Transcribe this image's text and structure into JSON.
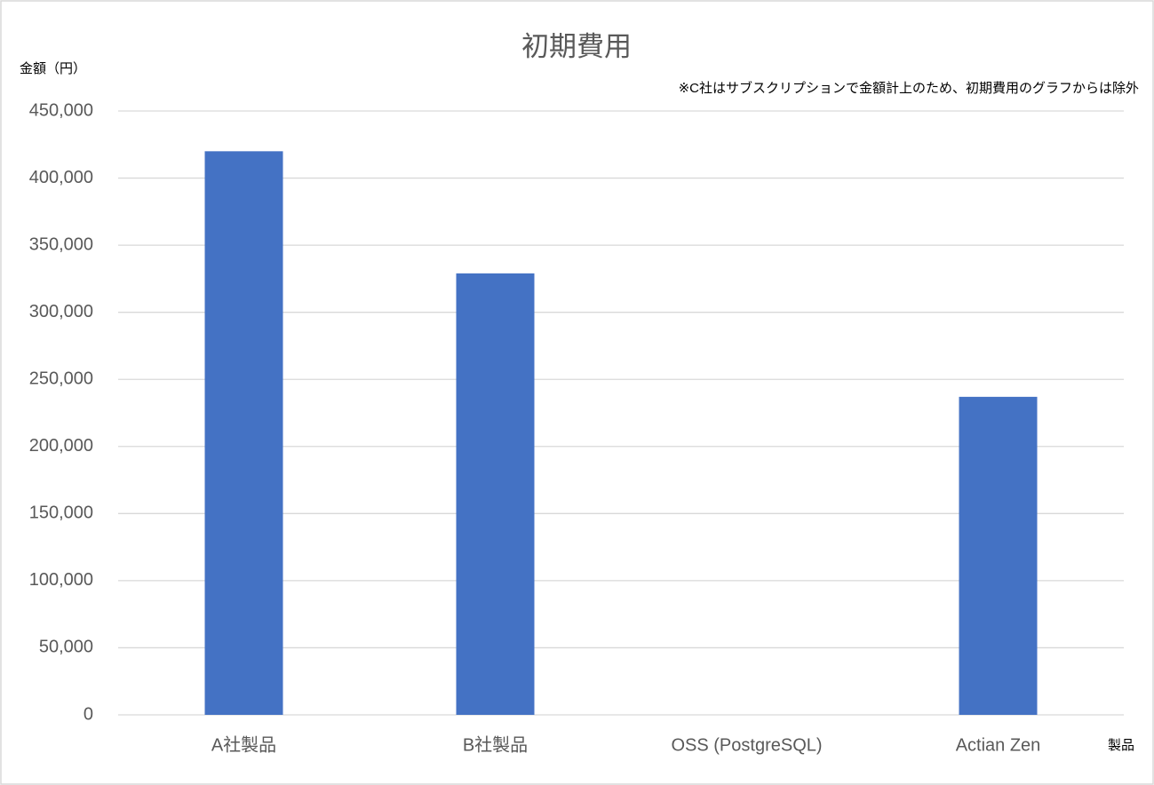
{
  "chart_data": {
    "type": "bar",
    "title": "初期費用",
    "y_label": "金額（円）",
    "x_label": "製品",
    "annotation": "※C社はサブスクリプションで金額計上のため、初期費用のグラフからは除外",
    "categories": [
      "A社製品",
      "B社製品",
      "OSS (PostgreSQL)",
      "Actian Zen"
    ],
    "values": [
      420000,
      329000,
      0,
      237000
    ],
    "color": "#4472c4",
    "ylim": [
      0,
      450000
    ],
    "yticks": [
      0,
      {
        "value": 50000,
        "label": "50,000"
      },
      {
        "value": 100000,
        "label": "100,000"
      },
      {
        "value": 150000,
        "label": "150,000"
      },
      {
        "value": 200000,
        "label": "200,000"
      },
      {
        "value": 250000,
        "label": "250,000"
      },
      {
        "value": 300000,
        "label": "300,000"
      },
      {
        "value": 350000,
        "label": "350,000"
      },
      {
        "value": 400000,
        "label": "400,000"
      },
      {
        "value": 450000,
        "label": "450,000"
      }
    ],
    "grid": true
  }
}
